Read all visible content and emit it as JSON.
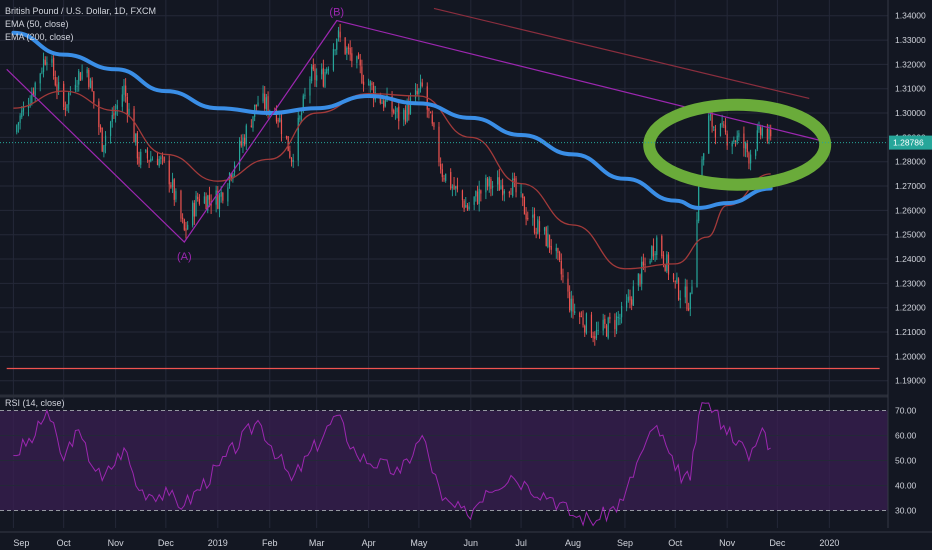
{
  "header": {
    "title": "British Pound / U.S. Dollar, 1D, FXCM",
    "ema50": "EMA (50, close)",
    "ema200": "EMA (200, close)",
    "rsi": "RSI (14, close)"
  },
  "price_tag": "1.28786",
  "colors": {
    "background": "#131722",
    "grid": "#242838",
    "up": "#26a69a",
    "down": "#ef5350",
    "ema50": "#a33a3a",
    "ema200": "#3a8ee6",
    "wave": "#9c27b0",
    "trendline": "#8b2e3e",
    "rsi_line": "#9c27b0",
    "rsi_band": "#3a1f52",
    "circle": "#6aab3a"
  },
  "chart_data": [
    {
      "type": "candlestick",
      "title": "British Pound / U.S. Dollar, 1D, FXCM",
      "x_ticks": [
        "Sep",
        "Oct",
        "Nov",
        "Dec",
        "2019",
        "Feb",
        "Mar",
        "Apr",
        "May",
        "Jun",
        "Jul",
        "Aug",
        "Sep",
        "Oct",
        "Nov",
        "Dec",
        "2020"
      ],
      "y_ticks": [
        "1.34000",
        "1.33000",
        "1.32000",
        "1.31000",
        "1.30000",
        "1.29000",
        "1.28000",
        "1.27000",
        "1.26000",
        "1.25000",
        "1.24000",
        "1.23000",
        "1.22000",
        "1.21000",
        "1.20000",
        "1.19000"
      ],
      "ylim": [
        1.187,
        1.344
      ],
      "last_price": 1.28786,
      "price_path": [
        [
          "2018-09-01",
          1.292
        ],
        [
          "2018-09-14",
          1.312
        ],
        [
          "2018-09-21",
          1.325
        ],
        [
          "2018-10-01",
          1.302
        ],
        [
          "2018-10-08",
          1.315
        ],
        [
          "2018-10-15",
          1.318
        ],
        [
          "2018-10-24",
          1.288
        ],
        [
          "2018-11-01",
          1.301
        ],
        [
          "2018-11-06",
          1.31
        ],
        [
          "2018-11-15",
          1.281
        ],
        [
          "2018-11-26",
          1.282
        ],
        [
          "2018-12-03",
          1.274
        ],
        [
          "2018-12-12",
          1.251
        ],
        [
          "2018-12-20",
          1.265
        ],
        [
          "2019-01-02",
          1.265
        ],
        [
          "2019-01-15",
          1.287
        ],
        [
          "2019-01-25",
          1.305
        ],
        [
          "2019-02-05",
          1.301
        ],
        [
          "2019-02-14",
          1.282
        ],
        [
          "2019-02-25",
          1.315
        ],
        [
          "2019-03-05",
          1.315
        ],
        [
          "2019-03-13",
          1.332
        ],
        [
          "2019-03-25",
          1.319
        ],
        [
          "2019-04-05",
          1.308
        ],
        [
          "2019-04-20",
          1.298
        ],
        [
          "2019-05-03",
          1.31
        ],
        [
          "2019-05-15",
          1.276
        ],
        [
          "2019-05-30",
          1.261
        ],
        [
          "2019-06-10",
          1.27
        ],
        [
          "2019-06-25",
          1.271
        ],
        [
          "2019-07-05",
          1.258
        ],
        [
          "2019-07-20",
          1.245
        ],
        [
          "2019-07-31",
          1.22
        ],
        [
          "2019-08-15",
          1.209
        ],
        [
          "2019-08-31",
          1.217
        ],
        [
          "2019-09-10",
          1.233
        ],
        [
          "2019-09-20",
          1.248
        ],
        [
          "2019-10-01",
          1.229
        ],
        [
          "2019-10-10",
          1.222
        ],
        [
          "2019-10-15",
          1.27
        ],
        [
          "2019-10-21",
          1.297
        ],
        [
          "2019-10-30",
          1.291
        ],
        [
          "2019-11-08",
          1.289
        ],
        [
          "2019-11-14",
          1.283
        ],
        [
          "2019-11-22",
          1.293
        ],
        [
          "2019-11-27",
          1.288
        ]
      ],
      "series": [
        {
          "name": "EMA (50, close)",
          "points": [
            [
              "2018-09-01",
              1.302
            ],
            [
              "2018-10-01",
              1.309
            ],
            [
              "2018-11-01",
              1.301
            ],
            [
              "2018-12-01",
              1.283
            ],
            [
              "2019-01-01",
              1.272
            ],
            [
              "2019-02-01",
              1.281
            ],
            [
              "2019-03-01",
              1.3
            ],
            [
              "2019-04-01",
              1.308
            ],
            [
              "2019-05-01",
              1.307
            ],
            [
              "2019-06-01",
              1.29
            ],
            [
              "2019-07-01",
              1.271
            ],
            [
              "2019-08-01",
              1.254
            ],
            [
              "2019-09-01",
              1.236
            ],
            [
              "2019-10-01",
              1.238
            ],
            [
              "2019-10-20",
              1.249
            ],
            [
              "2019-11-01",
              1.262
            ],
            [
              "2019-11-27",
              1.275
            ]
          ]
        },
        {
          "name": "EMA (200, close)",
          "points": [
            [
              "2018-09-01",
              1.333
            ],
            [
              "2018-10-01",
              1.324
            ],
            [
              "2018-11-01",
              1.318
            ],
            [
              "2018-12-01",
              1.309
            ],
            [
              "2019-01-01",
              1.302
            ],
            [
              "2019-02-01",
              1.3
            ],
            [
              "2019-03-01",
              1.302
            ],
            [
              "2019-04-01",
              1.307
            ],
            [
              "2019-05-01",
              1.304
            ],
            [
              "2019-06-01",
              1.298
            ],
            [
              "2019-07-01",
              1.291
            ],
            [
              "2019-08-01",
              1.283
            ],
            [
              "2019-09-01",
              1.273
            ],
            [
              "2019-10-01",
              1.264
            ],
            [
              "2019-10-15",
              1.261
            ],
            [
              "2019-11-01",
              1.263
            ],
            [
              "2019-11-27",
              1.269
            ]
          ]
        }
      ],
      "annotations": [
        {
          "label": "(A)",
          "date": "2018-12-12",
          "price": 1.247
        },
        {
          "label": "(B)",
          "date": "2019-03-13",
          "price": 1.338
        }
      ],
      "wave_line": [
        [
          "2018-08-28",
          1.318
        ],
        [
          "2018-12-12",
          1.247
        ],
        [
          "2019-03-13",
          1.338
        ],
        [
          "2019-12-31",
          1.288
        ]
      ],
      "trendlines": [
        {
          "from": [
            "2019-05-10",
            1.343
          ],
          "to": [
            "2019-12-20",
            1.306
          ]
        },
        {
          "from": [
            "2018-08-28",
            1.195
          ],
          "to": [
            "2020-01-31",
            1.195
          ]
        }
      ],
      "highlight": {
        "shape": "ellipse",
        "center": [
          "2019-11-07",
          1.287
        ]
      }
    },
    {
      "type": "line",
      "title": "RSI (14, close)",
      "y_ticks": [
        "70.00",
        "60.00",
        "50.00",
        "40.00",
        "30.00"
      ],
      "ylim": [
        23,
        75
      ],
      "band": [
        30,
        70
      ],
      "values": [
        [
          "2018-09-01",
          52
        ],
        [
          "2018-09-14",
          60
        ],
        [
          "2018-09-21",
          70
        ],
        [
          "2018-10-01",
          50
        ],
        [
          "2018-10-08",
          62
        ],
        [
          "2018-10-24",
          42
        ],
        [
          "2018-11-06",
          55
        ],
        [
          "2018-11-15",
          38
        ],
        [
          "2018-12-03",
          36
        ],
        [
          "2018-12-12",
          32
        ],
        [
          "2019-01-02",
          48
        ],
        [
          "2019-01-25",
          66
        ],
        [
          "2019-02-14",
          42
        ],
        [
          "2019-03-13",
          68
        ],
        [
          "2019-03-25",
          52
        ],
        [
          "2019-04-20",
          45
        ],
        [
          "2019-05-03",
          60
        ],
        [
          "2019-05-15",
          34
        ],
        [
          "2019-05-30",
          28
        ],
        [
          "2019-06-10",
          38
        ],
        [
          "2019-06-25",
          44
        ],
        [
          "2019-07-05",
          40
        ],
        [
          "2019-07-20",
          35
        ],
        [
          "2019-08-01",
          28
        ],
        [
          "2019-08-15",
          26
        ],
        [
          "2019-08-31",
          34
        ],
        [
          "2019-09-10",
          52
        ],
        [
          "2019-09-20",
          64
        ],
        [
          "2019-10-01",
          46
        ],
        [
          "2019-10-10",
          42
        ],
        [
          "2019-10-15",
          68
        ],
        [
          "2019-10-21",
          73
        ],
        [
          "2019-10-30",
          64
        ],
        [
          "2019-11-08",
          58
        ],
        [
          "2019-11-14",
          50
        ],
        [
          "2019-11-22",
          63
        ],
        [
          "2019-11-27",
          55
        ]
      ]
    }
  ]
}
